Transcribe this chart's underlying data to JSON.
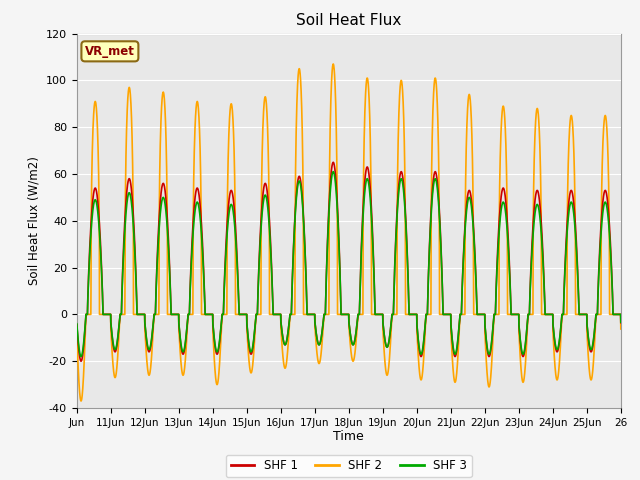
{
  "title": "Soil Heat Flux",
  "ylabel": "Soil Heat Flux (W/m2)",
  "xlabel": "Time",
  "ylim": [
    -40,
    120
  ],
  "yticks": [
    -40,
    -20,
    0,
    20,
    40,
    60,
    80,
    100,
    120
  ],
  "xtick_labels": [
    "Jun",
    "11Jun",
    "12Jun",
    "13Jun",
    "14Jun",
    "15Jun",
    "16Jun",
    "17Jun",
    "18Jun",
    "19Jun",
    "20Jun",
    "21Jun",
    "22Jun",
    "23Jun",
    "24Jun",
    "25Jun",
    "26"
  ],
  "color_shf1": "#cc0000",
  "color_shf2": "#ffa500",
  "color_shf3": "#00aa00",
  "legend_label1": "SHF 1",
  "legend_label2": "SHF 2",
  "legend_label3": "SHF 3",
  "annotation_text": "VR_met",
  "bg_color": "#e8e8e8",
  "grid_color": "#ffffff",
  "linewidth": 1.2,
  "shf2_peaks": [
    91,
    97,
    95,
    91,
    90,
    93,
    105,
    107,
    101,
    100,
    101,
    94,
    89,
    88,
    85
  ],
  "shf2_mins": [
    -37,
    -27,
    -26,
    -26,
    -30,
    -25,
    -23,
    -21,
    -20,
    -26,
    -28,
    -29,
    -31,
    -29,
    -28
  ],
  "shf1_peaks": [
    54,
    58,
    56,
    54,
    53,
    56,
    59,
    65,
    63,
    61,
    61,
    53,
    54,
    53,
    53
  ],
  "shf1_mins": [
    -20,
    -16,
    -16,
    -17,
    -17,
    -17,
    -13,
    -13,
    -13,
    -14,
    -18,
    -18,
    -18,
    -18,
    -16
  ],
  "shf3_peaks": [
    49,
    52,
    50,
    48,
    47,
    51,
    57,
    61,
    58,
    58,
    58,
    50,
    48,
    47,
    48
  ],
  "shf3_mins": [
    -18,
    -15,
    -15,
    -16,
    -16,
    -16,
    -13,
    -13,
    -13,
    -14,
    -17,
    -17,
    -17,
    -17,
    -15
  ]
}
